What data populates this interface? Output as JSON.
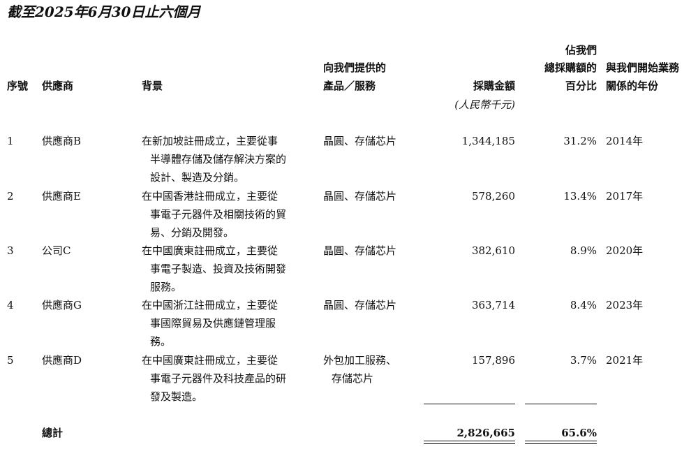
{
  "title": "截至2025年6月30日止六個月",
  "headers": {
    "no": "序號",
    "supplier": "供應商",
    "background": "背景",
    "products_l1": "向我們提供的",
    "products_l2": "產品／服務",
    "amount": "採購金額",
    "amount_unit": "(人民幣千元)",
    "pct_l1": "佔我們",
    "pct_l2": "總採購額的",
    "pct_l3": "百分比",
    "year_l1": "與我們開始業務",
    "year_l2": "關係的年份"
  },
  "rows": [
    {
      "no": "1",
      "supplier": "供應商B",
      "background": [
        "在新加坡註冊成立，主要從事",
        "半導體存儲及儲存解決方案的",
        "設計、製造及分銷。"
      ],
      "products": [
        "晶圓、存儲芯片"
      ],
      "amount": "1,344,185",
      "pct": "31.2%",
      "year": "2014年"
    },
    {
      "no": "2",
      "supplier": "供應商E",
      "background": [
        "在中國香港註冊成立，主要從",
        "事電子元器件及相關技術的貿",
        "易、分銷及開發。"
      ],
      "products": [
        "晶圓、存儲芯片"
      ],
      "amount": "578,260",
      "pct": "13.4%",
      "year": "2017年"
    },
    {
      "no": "3",
      "supplier": "公司C",
      "background": [
        "在中國廣東註冊成立，主要從",
        "事電子製造、投資及技術開發",
        "服務。"
      ],
      "products": [
        "晶圓、存儲芯片"
      ],
      "amount": "382,610",
      "pct": "8.9%",
      "year": "2020年"
    },
    {
      "no": "4",
      "supplier": "供應商G",
      "background": [
        "在中國浙江註冊成立，主要從",
        "事國際貿易及供應鏈管理服",
        "務。"
      ],
      "products": [
        "晶圓、存儲芯片"
      ],
      "amount": "363,714",
      "pct": "8.4%",
      "year": "2023年"
    },
    {
      "no": "5",
      "supplier": "供應商D",
      "background": [
        "在中國廣東註冊成立，主要從",
        "事電子元器件及科技產品的研",
        "發及製造。"
      ],
      "products": [
        "外包加工服務、",
        "存儲芯片"
      ],
      "amount": "157,896",
      "pct": "3.7%",
      "year": "2021年"
    }
  ],
  "total": {
    "label": "總計",
    "amount": "2,826,665",
    "pct": "65.6%"
  }
}
